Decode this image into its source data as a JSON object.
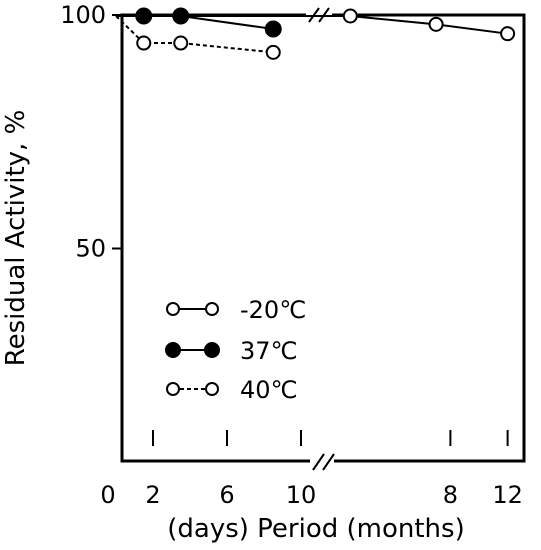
{
  "chart_data": {
    "type": "line",
    "title": "",
    "xlabel": "(days) Period (months)",
    "ylabel": "Residual Activity, %",
    "ylim": [
      0,
      100
    ],
    "y_ticks": [
      "50",
      "100"
    ],
    "x_axis_broken": true,
    "x_segments": [
      {
        "unit": "days",
        "range": [
          0,
          11
        ],
        "tick_labels": [
          "0",
          "2",
          "6",
          "10"
        ]
      },
      {
        "unit": "months",
        "range": [
          0,
          13
        ],
        "tick_labels": [
          "8",
          "12"
        ]
      }
    ],
    "grid": false,
    "legend_position": "bottom-left",
    "series": [
      {
        "name": "-20℃",
        "marker": "open-circle",
        "line": "solid",
        "points": [
          {
            "segment": "days",
            "x": 0,
            "y": 100
          },
          {
            "segment": "months",
            "x": 1,
            "y": 100
          },
          {
            "segment": "months",
            "x": 7,
            "y": 98
          },
          {
            "segment": "months",
            "x": 12,
            "y": 96
          }
        ]
      },
      {
        "name": "37℃",
        "marker": "filled-circle",
        "line": "solid",
        "points": [
          {
            "segment": "days",
            "x": 0,
            "y": 100
          },
          {
            "segment": "days",
            "x": 1.5,
            "y": 100
          },
          {
            "segment": "days",
            "x": 3.5,
            "y": 100
          },
          {
            "segment": "days",
            "x": 8.5,
            "y": 97
          }
        ]
      },
      {
        "name": "40℃",
        "marker": "open-circle",
        "line": "dashed",
        "points": [
          {
            "segment": "days",
            "x": 0,
            "y": 100
          },
          {
            "segment": "days",
            "x": 1.5,
            "y": 94
          },
          {
            "segment": "days",
            "x": 3.5,
            "y": 94
          },
          {
            "segment": "days",
            "x": 8.5,
            "y": 92
          }
        ]
      }
    ]
  }
}
